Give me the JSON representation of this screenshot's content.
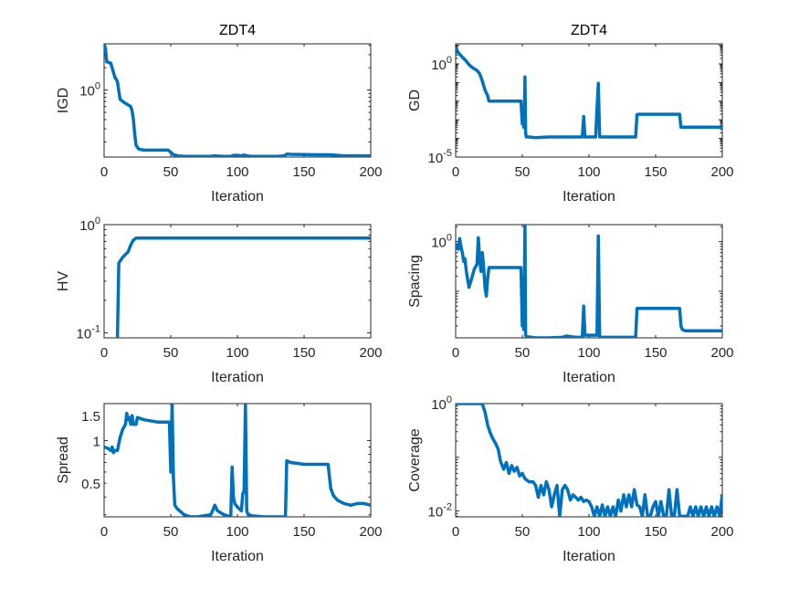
{
  "chart_data": [
    {
      "type": "line",
      "title": "ZDT4",
      "xlabel": "Iteration",
      "ylabel": "IGD",
      "yscale": "log",
      "xlim": [
        0,
        200
      ],
      "ylim": [
        0.125,
        4.2
      ],
      "xticks": [
        0,
        50,
        100,
        150,
        200
      ],
      "xtick_labels": [
        "0",
        "50",
        "100",
        "150",
        "200"
      ],
      "yticks": [
        1
      ],
      "ytick_labels": [
        "10^0"
      ],
      "color": "#0072BD",
      "series": [
        {
          "name": "IGD",
          "x": [
            0,
            1,
            2,
            5,
            6,
            8,
            10,
            12,
            15,
            18,
            20,
            21,
            22,
            23,
            24,
            26,
            30,
            40,
            48,
            50,
            52,
            55,
            60,
            70,
            80,
            82,
            90,
            95,
            97,
            100,
            103,
            105,
            107,
            110,
            120,
            130,
            135,
            137,
            140,
            150,
            160,
            170,
            175,
            180,
            190,
            200
          ],
          "y": [
            4.2,
            3.6,
            2.4,
            2.3,
            2.0,
            1.5,
            1.3,
            0.75,
            0.68,
            0.63,
            0.6,
            0.52,
            0.4,
            0.25,
            0.18,
            0.16,
            0.155,
            0.155,
            0.155,
            0.145,
            0.135,
            0.13,
            0.128,
            0.128,
            0.128,
            0.13,
            0.128,
            0.128,
            0.132,
            0.132,
            0.13,
            0.133,
            0.13,
            0.128,
            0.128,
            0.128,
            0.13,
            0.137,
            0.136,
            0.135,
            0.134,
            0.134,
            0.132,
            0.13,
            0.13,
            0.13
          ]
        }
      ]
    },
    {
      "type": "line",
      "title": "ZDT4",
      "xlabel": "Iteration",
      "ylabel": "GD",
      "yscale": "log",
      "xlim": [
        0,
        200
      ],
      "ylim": [
        1e-05,
        12
      ],
      "xticks": [
        0,
        50,
        100,
        150,
        200
      ],
      "xtick_labels": [
        "0",
        "50",
        "100",
        "150",
        "200"
      ],
      "yticks": [
        1,
        1e-05
      ],
      "ytick_labels": [
        "10^0",
        "10^-5"
      ],
      "color": "#0072BD",
      "series": [
        {
          "name": "GD",
          "x": [
            0,
            2,
            5,
            8,
            10,
            13,
            16,
            18,
            20,
            22,
            24,
            25,
            30,
            40,
            49,
            50,
            50.5,
            51,
            51.5,
            52,
            52.5,
            53,
            55,
            60,
            70,
            80,
            90,
            95,
            96,
            97,
            98,
            100,
            105,
            106,
            107,
            108,
            109,
            110,
            120,
            130,
            135,
            136,
            137,
            140,
            150,
            160,
            168,
            169,
            170,
            175,
            180,
            190,
            200
          ],
          "y": [
            8,
            4,
            2.3,
            1.4,
            0.9,
            0.6,
            0.45,
            0.3,
            0.12,
            0.04,
            0.02,
            0.01,
            0.01,
            0.01,
            0.01,
            0.0006,
            0.005,
            0.0004,
            0.002,
            0.2,
            0.0002,
            0.00012,
            0.00012,
            0.00011,
            0.00012,
            0.00012,
            0.00012,
            0.00012,
            0.0015,
            0.00012,
            0.00012,
            0.00012,
            0.00012,
            0.004,
            0.09,
            0.00012,
            0.00012,
            0.00012,
            0.00012,
            0.00012,
            0.00012,
            0.0019,
            0.002,
            0.002,
            0.002,
            0.002,
            0.002,
            0.0004,
            0.0004,
            0.0004,
            0.0004,
            0.0004,
            0.0004
          ]
        }
      ]
    },
    {
      "type": "line",
      "title": "",
      "xlabel": "Iteration",
      "ylabel": "HV",
      "yscale": "log",
      "xlim": [
        0,
        200
      ],
      "ylim": [
        0.09,
        1.0
      ],
      "xticks": [
        0,
        50,
        100,
        150,
        200
      ],
      "xtick_labels": [
        "0",
        "50",
        "100",
        "150",
        "200"
      ],
      "yticks": [
        1,
        0.1
      ],
      "ytick_labels": [
        "10^0",
        "10^-1"
      ],
      "color": "#0072BD",
      "series": [
        {
          "name": "HV",
          "x": [
            10,
            11,
            12,
            14,
            16,
            18,
            20,
            22,
            24,
            26,
            30,
            50,
            100,
            150,
            200
          ],
          "y": [
            0.09,
            0.44,
            0.46,
            0.5,
            0.53,
            0.56,
            0.65,
            0.72,
            0.75,
            0.75,
            0.75,
            0.75,
            0.75,
            0.75,
            0.75
          ]
        }
      ]
    },
    {
      "type": "line",
      "title": "",
      "xlabel": "Iteration",
      "ylabel": "Spacing",
      "yscale": "log",
      "xlim": [
        0,
        200
      ],
      "ylim": [
        0.0115,
        2.2
      ],
      "xticks": [
        0,
        50,
        100,
        150,
        200
      ],
      "xtick_labels": [
        "0",
        "50",
        "100",
        "150",
        "200"
      ],
      "yticks": [
        1
      ],
      "ytick_labels": [
        "10^0"
      ],
      "color": "#0072BD",
      "series": [
        {
          "name": "Spacing",
          "x": [
            0,
            2,
            3,
            4,
            5,
            6,
            7,
            8,
            10,
            12,
            14,
            16,
            17,
            18,
            19,
            20,
            21,
            22,
            23,
            24,
            25,
            30,
            40,
            49,
            50,
            50.5,
            51,
            51.5,
            52,
            52.5,
            53,
            55,
            60,
            70,
            80,
            83,
            90,
            95,
            96,
            97,
            98,
            100,
            105,
            106,
            107,
            108,
            109,
            110,
            120,
            130,
            135,
            136,
            137,
            140,
            150,
            160,
            168,
            169,
            170,
            172,
            180,
            190,
            200
          ],
          "y": [
            0.9,
            0.7,
            1.15,
            0.8,
            0.6,
            0.4,
            0.45,
            0.25,
            0.12,
            0.18,
            0.28,
            0.35,
            1.2,
            0.45,
            0.25,
            0.6,
            0.3,
            0.12,
            0.08,
            0.18,
            0.3,
            0.3,
            0.3,
            0.3,
            0.02,
            0.2,
            0.017,
            0.1,
            2.2,
            0.013,
            0.012,
            0.012,
            0.0115,
            0.0115,
            0.0118,
            0.0125,
            0.0118,
            0.0118,
            0.05,
            0.013,
            0.013,
            0.013,
            0.013,
            0.013,
            1.3,
            0.012,
            0.0118,
            0.0118,
            0.0118,
            0.0118,
            0.0118,
            0.045,
            0.045,
            0.045,
            0.045,
            0.045,
            0.045,
            0.02,
            0.017,
            0.016,
            0.016,
            0.016,
            0.016
          ]
        }
      ]
    },
    {
      "type": "line",
      "title": "",
      "xlabel": "Iteration",
      "ylabel": "Spread",
      "yscale": "log",
      "xlim": [
        0,
        200
      ],
      "ylim": [
        0.29,
        1.82
      ],
      "xticks": [
        0,
        50,
        100,
        150,
        200
      ],
      "xtick_labels": [
        "0",
        "50",
        "100",
        "150",
        "200"
      ],
      "yticks": [
        0.5,
        1,
        1.5
      ],
      "ytick_labels": [
        "0.5",
        "1",
        "1.5"
      ],
      "color": "#0072BD",
      "series": [
        {
          "name": "Spread",
          "x": [
            0,
            3,
            5,
            6,
            7,
            8,
            10,
            12,
            14,
            16,
            17,
            18,
            19,
            20,
            21,
            22,
            24,
            25,
            30,
            40,
            49,
            50,
            51,
            52,
            53,
            54,
            55,
            60,
            65,
            70,
            80,
            82,
            83,
            85,
            90,
            95,
            96,
            97,
            98,
            100,
            103,
            104,
            105,
            106,
            107,
            108,
            109,
            110,
            120,
            130,
            135,
            136,
            137,
            140,
            150,
            160,
            168,
            170,
            172,
            175,
            180,
            185,
            190,
            195,
            200
          ],
          "y": [
            0.9,
            0.88,
            0.85,
            0.9,
            0.82,
            0.85,
            0.85,
            1.05,
            1.2,
            1.3,
            1.55,
            1.4,
            1.45,
            1.3,
            1.5,
            1.3,
            1.3,
            1.45,
            1.4,
            1.35,
            1.35,
            0.6,
            1.8,
            0.55,
            0.35,
            0.34,
            0.33,
            0.3,
            0.29,
            0.29,
            0.3,
            0.33,
            0.35,
            0.32,
            0.3,
            0.29,
            0.65,
            0.4,
            0.36,
            0.34,
            0.32,
            0.42,
            0.44,
            1.78,
            0.32,
            0.3,
            0.3,
            0.295,
            0.29,
            0.29,
            0.29,
            0.29,
            0.72,
            0.7,
            0.68,
            0.68,
            0.68,
            0.46,
            0.41,
            0.38,
            0.36,
            0.35,
            0.36,
            0.36,
            0.35
          ]
        }
      ]
    },
    {
      "type": "line",
      "title": "",
      "xlabel": "Iteration",
      "ylabel": "Coverage",
      "yscale": "log",
      "xlim": [
        0,
        200
      ],
      "ylim": [
        0.0078,
        1.0
      ],
      "xticks": [
        0,
        50,
        100,
        150,
        200
      ],
      "xtick_labels": [
        "0",
        "50",
        "100",
        "150",
        "200"
      ],
      "yticks": [
        1,
        0.01
      ],
      "ytick_labels": [
        "10^0",
        "10^-2"
      ],
      "color": "#0072BD",
      "series": [
        {
          "name": "Coverage",
          "x": [
            0,
            10,
            18,
            20,
            22,
            24,
            26,
            28,
            30,
            32,
            33,
            34,
            35,
            36,
            38,
            40,
            42,
            44,
            46,
            48,
            50,
            52,
            55,
            58,
            60,
            62,
            64,
            66,
            68,
            70,
            72,
            74,
            76,
            78,
            80,
            82,
            84,
            86,
            88,
            90,
            92,
            94,
            96,
            98,
            100,
            102,
            104,
            106,
            108,
            110,
            112,
            114,
            116,
            118,
            120,
            122,
            124,
            126,
            128,
            130,
            132,
            134,
            136,
            138,
            140,
            142,
            144,
            146,
            148,
            150,
            152,
            154,
            156,
            158,
            160,
            162,
            164,
            166,
            168,
            170,
            172,
            174,
            176,
            178,
            180,
            182,
            184,
            186,
            188,
            190,
            192,
            194,
            196,
            198,
            200
          ],
          "y": [
            1,
            1,
            1,
            0.98,
            0.7,
            0.4,
            0.28,
            0.22,
            0.18,
            0.14,
            0.1,
            0.08,
            0.07,
            0.06,
            0.08,
            0.05,
            0.07,
            0.055,
            0.065,
            0.045,
            0.05,
            0.04,
            0.035,
            0.035,
            0.03,
            0.018,
            0.03,
            0.02,
            0.035,
            0.025,
            0.012,
            0.02,
            0.03,
            0.008,
            0.025,
            0.03,
            0.025,
            0.016,
            0.02,
            0.018,
            0.016,
            0.018,
            0.015,
            0.016,
            0.015,
            0.012,
            0.008,
            0.012,
            0.008,
            0.013,
            0.008,
            0.012,
            0.008,
            0.012,
            0.008,
            0.016,
            0.01,
            0.02,
            0.012,
            0.02,
            0.012,
            0.025,
            0.013,
            0.012,
            0.008,
            0.02,
            0.008,
            0.008,
            0.012,
            0.015,
            0.008,
            0.015,
            0.008,
            0.008,
            0.025,
            0.008,
            0.008,
            0.025,
            0.008,
            0.008,
            0.008,
            0.008,
            0.012,
            0.008,
            0.012,
            0.008,
            0.012,
            0.008,
            0.012,
            0.008,
            0.012,
            0.008,
            0.012,
            0.008,
            0.02
          ]
        }
      ]
    }
  ]
}
